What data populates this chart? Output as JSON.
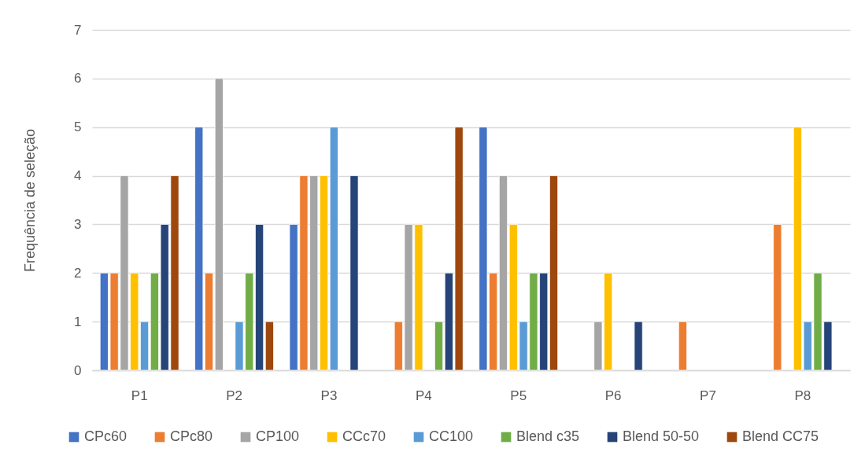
{
  "chart_data": {
    "type": "bar",
    "ylabel": "Frequência de seleção",
    "categories": [
      "P1",
      "P2",
      "P3",
      "P4",
      "P5",
      "P6",
      "P7",
      "P8"
    ],
    "series": [
      {
        "name": "CPc60",
        "color": "#4472c4",
        "values": [
          2,
          5,
          3,
          null,
          5,
          null,
          null,
          null
        ]
      },
      {
        "name": "CPc80",
        "color": "#ed7d31",
        "values": [
          2,
          2,
          4,
          1,
          2,
          null,
          1,
          3
        ]
      },
      {
        "name": "CP100",
        "color": "#a5a5a5",
        "values": [
          4,
          6,
          4,
          3,
          4,
          1,
          null,
          null
        ]
      },
      {
        "name": "CCc70",
        "color": "#ffc000",
        "values": [
          2,
          null,
          4,
          3,
          3,
          2,
          null,
          5
        ]
      },
      {
        "name": "CC100",
        "color": "#5b9bd5",
        "values": [
          1,
          1,
          5,
          null,
          1,
          null,
          null,
          1
        ]
      },
      {
        "name": "Blend c35",
        "color": "#70ad47",
        "values": [
          2,
          2,
          null,
          1,
          2,
          null,
          null,
          2
        ]
      },
      {
        "name": "Blend 50-50",
        "color": "#264478",
        "values": [
          3,
          3,
          4,
          2,
          2,
          1,
          null,
          1
        ]
      },
      {
        "name": "Blend CC75",
        "color": "#9e480e",
        "values": [
          4,
          1,
          null,
          5,
          4,
          null,
          null,
          null
        ]
      }
    ],
    "ylim": [
      0,
      7
    ],
    "yticks": [
      0,
      1,
      2,
      3,
      4,
      5,
      6,
      7
    ],
    "grid": "y",
    "legend": "bottom"
  }
}
